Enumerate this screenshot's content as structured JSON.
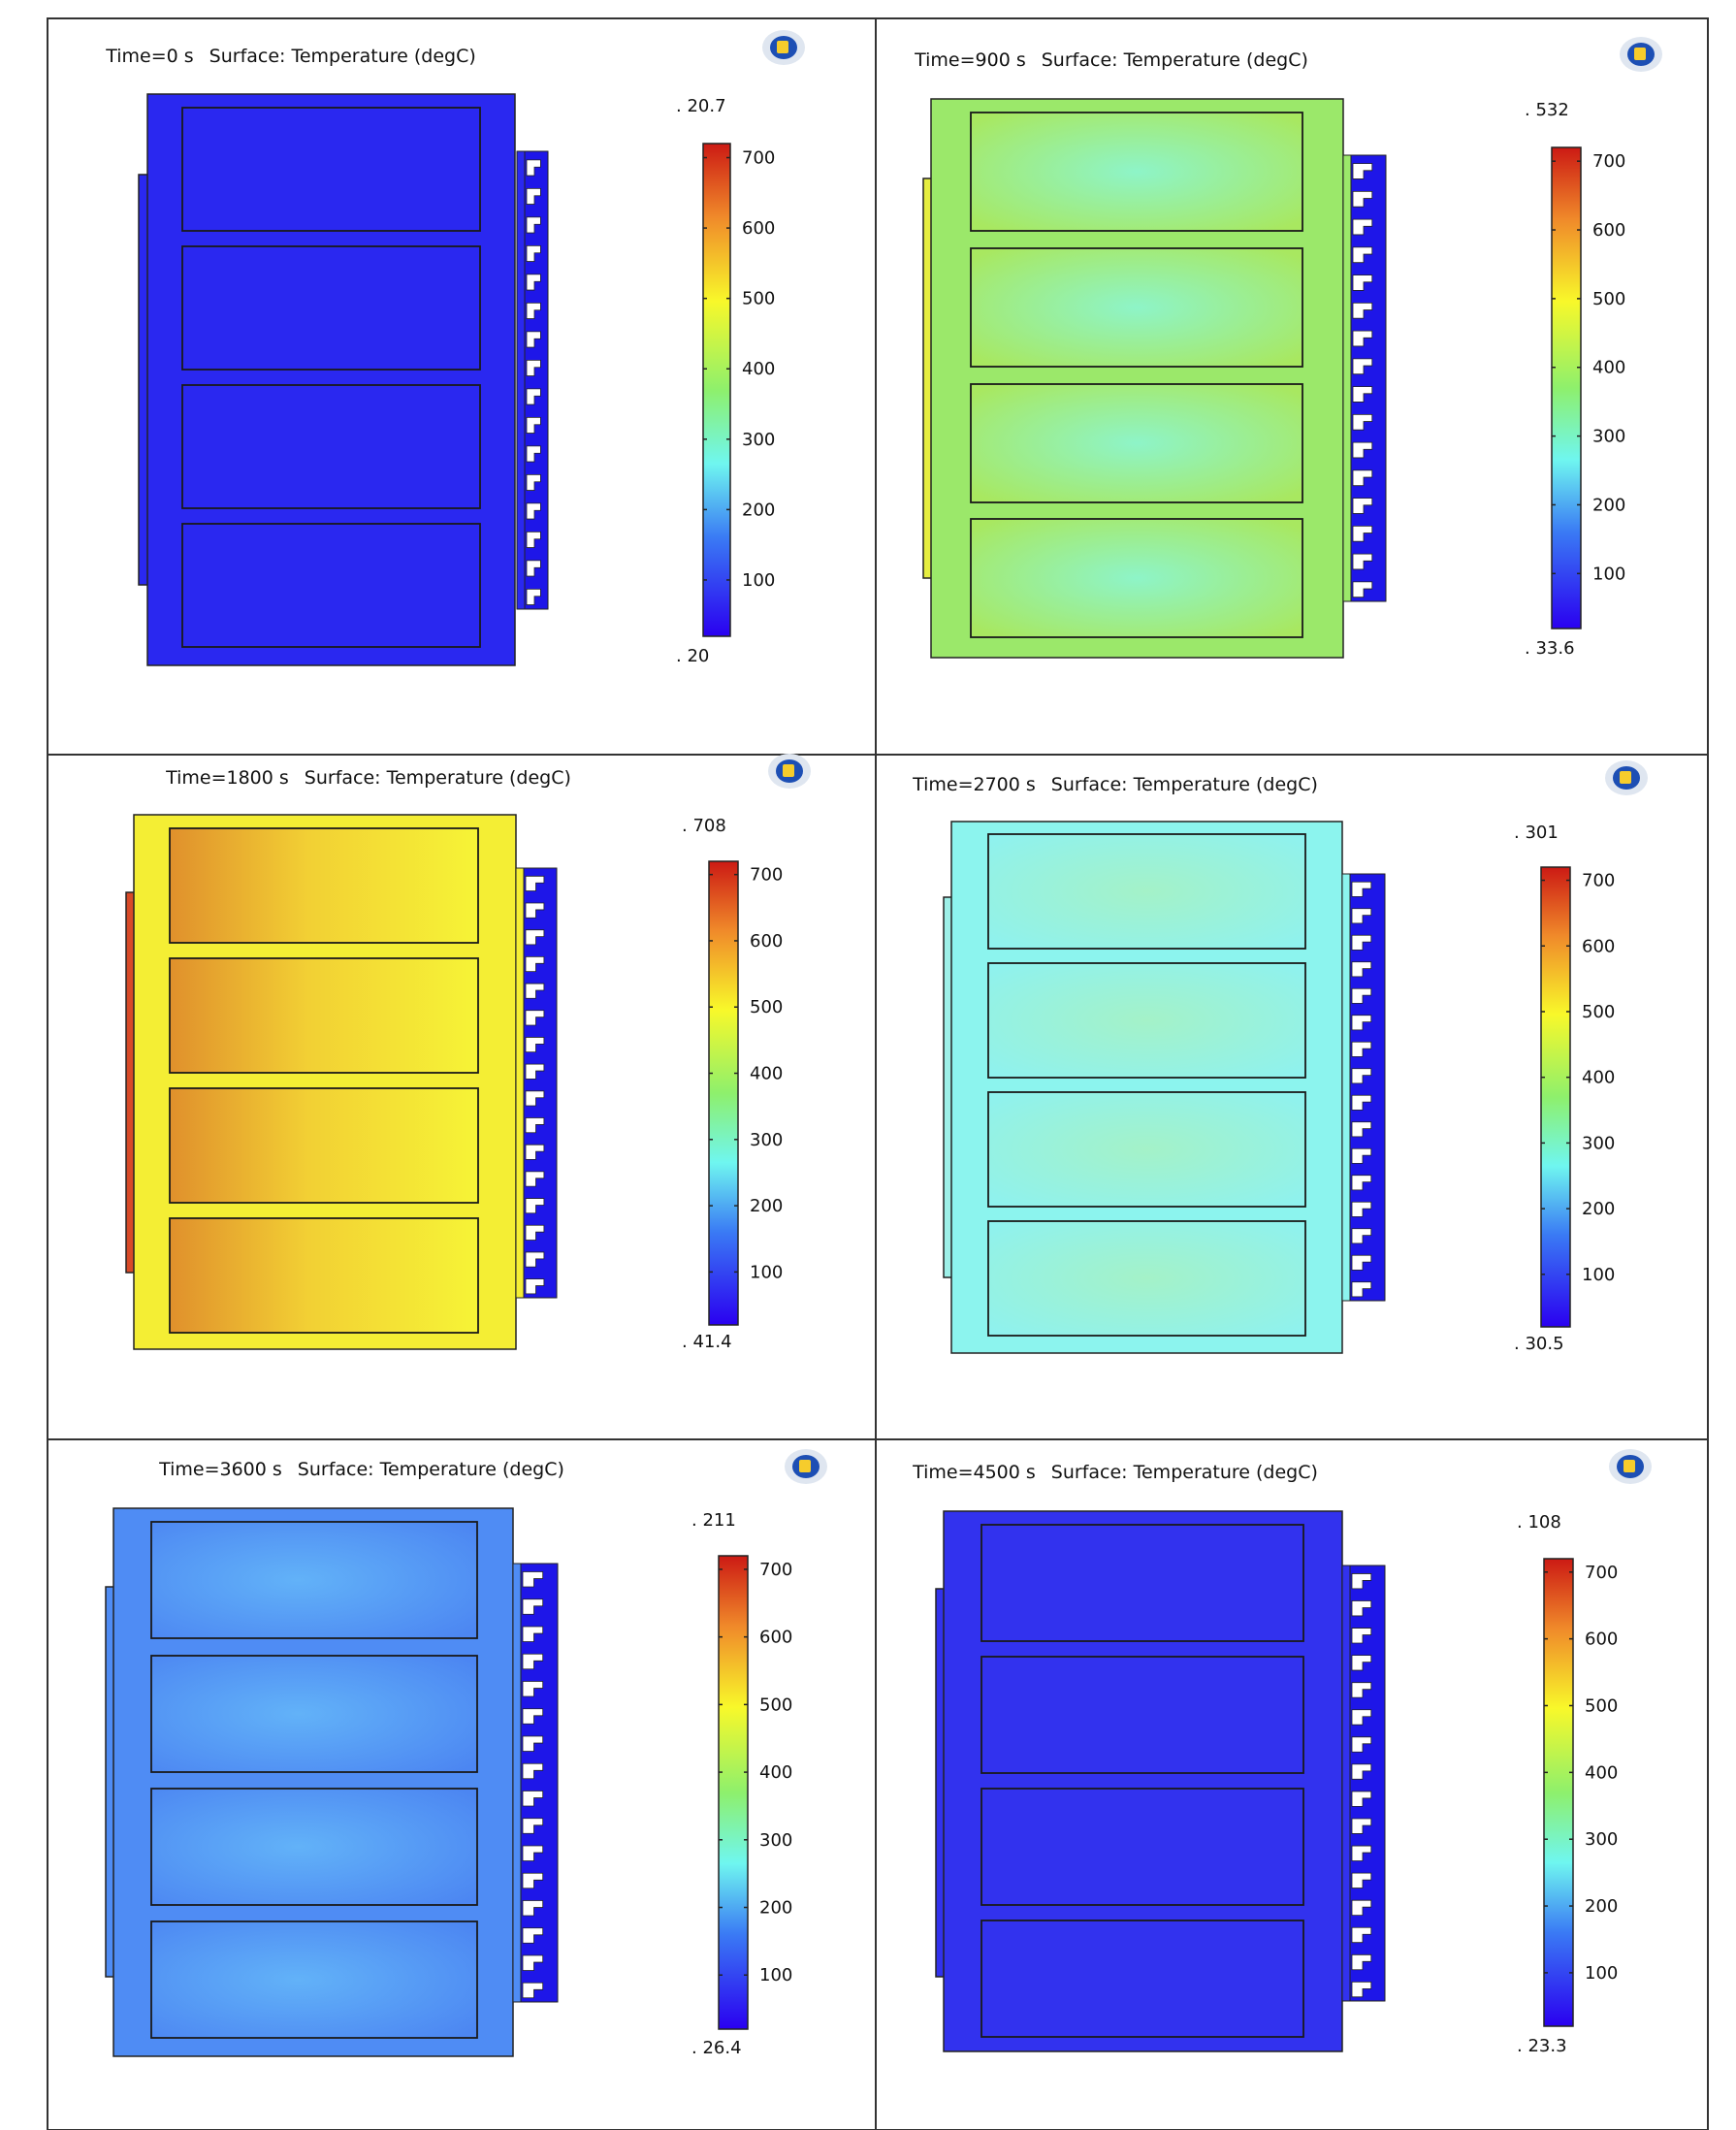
{
  "figure": {
    "colorbar_ticks": [
      "700",
      "600",
      "500",
      "400",
      "300",
      "200",
      "100"
    ],
    "panels": [
      {
        "time_label": "Time=0 s",
        "surface_label": "Surface: Temperature (degC)",
        "max_label": "20.7",
        "min_label": "20",
        "body_color": "#2a28f0",
        "left_plate_color": "#2a28f0",
        "core_gradient": "uniform"
      },
      {
        "time_label": "Time=900 s",
        "surface_label": "Surface: Temperature (degC)",
        "max_label": "532",
        "min_label": "33.6",
        "body_color": "#9be86a",
        "left_plate_color": "#e6ee40",
        "core_gradient": "center-cool"
      },
      {
        "time_label": "Time=1800 s",
        "surface_label": "Surface: Temperature (degC)",
        "max_label": "708",
        "min_label": "41.4",
        "body_color": "#f4ee34",
        "left_plate_color": "#d84a28",
        "core_gradient": "left-hot"
      },
      {
        "time_label": "Time=2700 s",
        "surface_label": "Surface: Temperature (degC)",
        "max_label": "301",
        "min_label": "30.5",
        "body_color": "#8cf4ee",
        "left_plate_color": "#9ef0e8",
        "core_gradient": "center-warm"
      },
      {
        "time_label": "Time=3600 s",
        "surface_label": "Surface: Temperature (degC)",
        "max_label": "211",
        "min_label": "26.4",
        "body_color": "#4f8cf4",
        "left_plate_color": "#4f8cf4",
        "core_gradient": "center-light"
      },
      {
        "time_label": "Time=4500 s",
        "surface_label": "Surface: Temperature (degC)",
        "max_label": "108",
        "min_label": "23.3",
        "body_color": "#3232ee",
        "left_plate_color": "#3232ee",
        "core_gradient": "uniform"
      }
    ]
  }
}
